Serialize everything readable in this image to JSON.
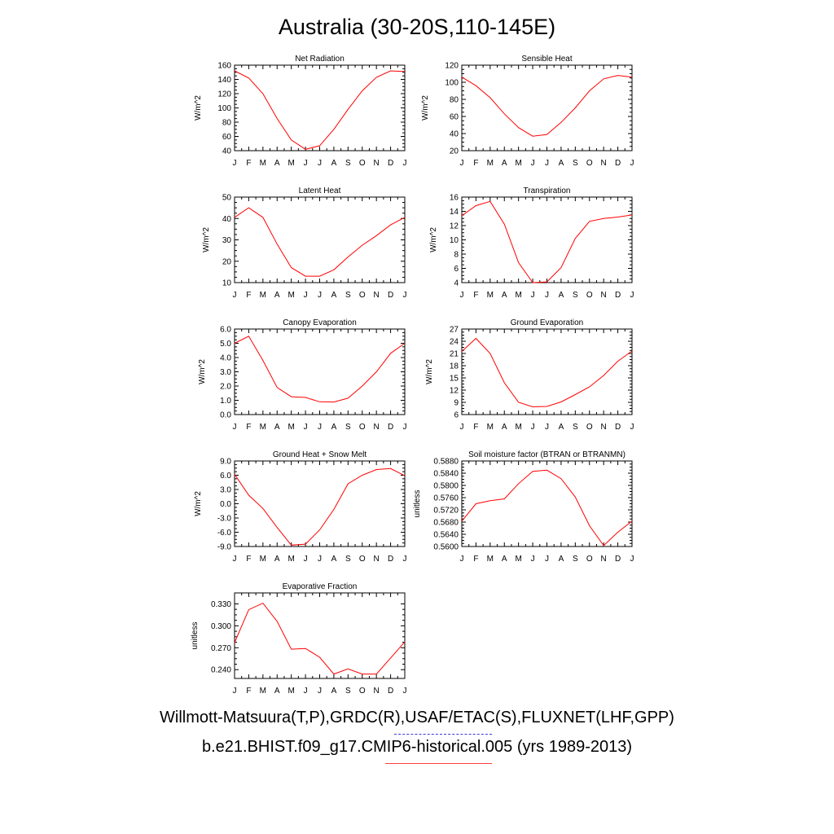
{
  "title": "Australia (30-20S,110-145E)",
  "legend": {
    "observations": "Willmott-Matsuura(T,P),GRDC(R),USAF/ETAC(S),FLUXNET(LHF,GPP)",
    "model": "b.e21.BHIST.f09_g17.CMIP6-historical.005 (yrs 1989-2013)",
    "observations_color": "#3b3bd6",
    "model_color": "#ff0000"
  },
  "chart_data": [
    {
      "type": "line",
      "title": "Net Radiation",
      "ylabel": "W/m^2",
      "x": [
        "J",
        "F",
        "M",
        "A",
        "M",
        "J",
        "J",
        "A",
        "S",
        "O",
        "N",
        "D",
        "J"
      ],
      "ylim": [
        40,
        160
      ],
      "yticks": [
        "40",
        "60",
        "80",
        "100",
        "120",
        "140",
        "160"
      ],
      "series": [
        {
          "color": "#ff0000",
          "values": [
            152,
            142,
            120,
            85,
            55,
            42,
            47,
            70,
            98,
            124,
            143,
            152,
            151
          ]
        }
      ]
    },
    {
      "type": "line",
      "title": "Sensible Heat",
      "ylabel": "W/m^2",
      "x": [
        "J",
        "F",
        "M",
        "A",
        "M",
        "J",
        "J",
        "A",
        "S",
        "O",
        "N",
        "D",
        "J"
      ],
      "ylim": [
        20,
        120
      ],
      "yticks": [
        "20",
        "40",
        "60",
        "80",
        "100",
        "120"
      ],
      "series": [
        {
          "color": "#ff0000",
          "values": [
            106,
            96,
            82,
            63,
            47,
            37,
            39,
            53,
            70,
            90,
            104,
            108,
            106
          ]
        }
      ]
    },
    {
      "type": "line",
      "title": "Latent Heat",
      "ylabel": "W/m^2",
      "x": [
        "J",
        "F",
        "M",
        "A",
        "M",
        "J",
        "J",
        "A",
        "S",
        "O",
        "N",
        "D",
        "J"
      ],
      "ylim": [
        10,
        50
      ],
      "yticks": [
        "10",
        "20",
        "30",
        "40",
        "50"
      ],
      "series": [
        {
          "color": "#ff0000",
          "values": [
            40.5,
            45,
            40.5,
            28,
            17,
            13,
            13,
            16,
            22,
            27.5,
            32,
            37,
            40.5
          ]
        }
      ]
    },
    {
      "type": "line",
      "title": "Transpiration",
      "ylabel": "W/m^2",
      "x": [
        "J",
        "F",
        "M",
        "A",
        "M",
        "J",
        "J",
        "A",
        "S",
        "O",
        "N",
        "D",
        "J"
      ],
      "ylim": [
        4,
        16
      ],
      "yticks": [
        "4",
        "6",
        "8",
        "10",
        "12",
        "14",
        "16"
      ],
      "series": [
        {
          "color": "#ff0000",
          "values": [
            13.4,
            14.8,
            15.4,
            12.2,
            6.8,
            4.0,
            4.1,
            6.1,
            10.2,
            12.6,
            13.0,
            13.2,
            13.5
          ]
        }
      ]
    },
    {
      "type": "line",
      "title": "Canopy Evaporation",
      "ylabel": "W/m^2",
      "x": [
        "J",
        "F",
        "M",
        "A",
        "M",
        "J",
        "J",
        "A",
        "S",
        "O",
        "N",
        "D",
        "J"
      ],
      "ylim": [
        0,
        6
      ],
      "yticks": [
        "0.0",
        "1.0",
        "2.0",
        "3.0",
        "4.0",
        "5.0",
        "6.0"
      ],
      "series": [
        {
          "color": "#ff0000",
          "values": [
            5.0,
            5.5,
            3.8,
            1.9,
            1.25,
            1.2,
            0.9,
            0.88,
            1.15,
            2.0,
            3.0,
            4.3,
            5.0
          ]
        }
      ]
    },
    {
      "type": "line",
      "title": "Ground Evaporation",
      "ylabel": "W/m^2",
      "x": [
        "J",
        "F",
        "M",
        "A",
        "M",
        "J",
        "J",
        "A",
        "S",
        "O",
        "N",
        "D",
        "J"
      ],
      "ylim": [
        6,
        27
      ],
      "yticks": [
        "6",
        "9",
        "12",
        "15",
        "18",
        "21",
        "24",
        "27"
      ],
      "series": [
        {
          "color": "#ff0000",
          "values": [
            21.5,
            24.7,
            21.0,
            13.8,
            9.0,
            7.9,
            8.0,
            9.1,
            10.9,
            12.8,
            15.6,
            19.1,
            21.6
          ]
        }
      ]
    },
    {
      "type": "line",
      "title": "Ground Heat + Snow Melt",
      "ylabel": "W/m^2",
      "x": [
        "J",
        "F",
        "M",
        "A",
        "M",
        "J",
        "J",
        "A",
        "S",
        "O",
        "N",
        "D",
        "J"
      ],
      "ylim": [
        -9,
        9
      ],
      "yticks": [
        "-9.0",
        "-6.0",
        "-3.0",
        "0.0",
        "3.0",
        "6.0",
        "9.0"
      ],
      "series": [
        {
          "color": "#ff0000",
          "values": [
            6.2,
            1.8,
            -1.0,
            -5.0,
            -8.7,
            -8.5,
            -5.5,
            -1.2,
            4.2,
            6.0,
            7.2,
            7.4,
            5.9
          ]
        }
      ]
    },
    {
      "type": "line",
      "title": "Soil moisture factor (BTRAN or BTRANMN)",
      "ylabel": "unitless",
      "x": [
        "J",
        "F",
        "M",
        "A",
        "M",
        "J",
        "J",
        "A",
        "S",
        "O",
        "N",
        "D",
        "J"
      ],
      "ylim": [
        0.56,
        0.588
      ],
      "yticks": [
        "0.5600",
        "0.5640",
        "0.5680",
        "0.5720",
        "0.5760",
        "0.5800",
        "0.5840",
        "0.5880"
      ],
      "series": [
        {
          "color": "#ff0000",
          "values": [
            0.5683,
            0.574,
            0.575,
            0.5756,
            0.5806,
            0.5846,
            0.585,
            0.5822,
            0.5762,
            0.5668,
            0.5603,
            0.5647,
            0.5683
          ]
        }
      ]
    },
    {
      "type": "line",
      "title": "Evaporative Fraction",
      "ylabel": "unitless",
      "x": [
        "J",
        "F",
        "M",
        "A",
        "M",
        "J",
        "J",
        "A",
        "S",
        "O",
        "N",
        "D",
        "J"
      ],
      "ylim": [
        0.228,
        0.345
      ],
      "yticks": [
        "0.240",
        "0.270",
        "0.300",
        "0.330"
      ],
      "series": [
        {
          "color": "#ff0000",
          "values": [
            0.277,
            0.322,
            0.331,
            0.306,
            0.268,
            0.269,
            0.257,
            0.234,
            0.241,
            0.234,
            0.234,
            0.256,
            0.278
          ]
        }
      ]
    }
  ]
}
